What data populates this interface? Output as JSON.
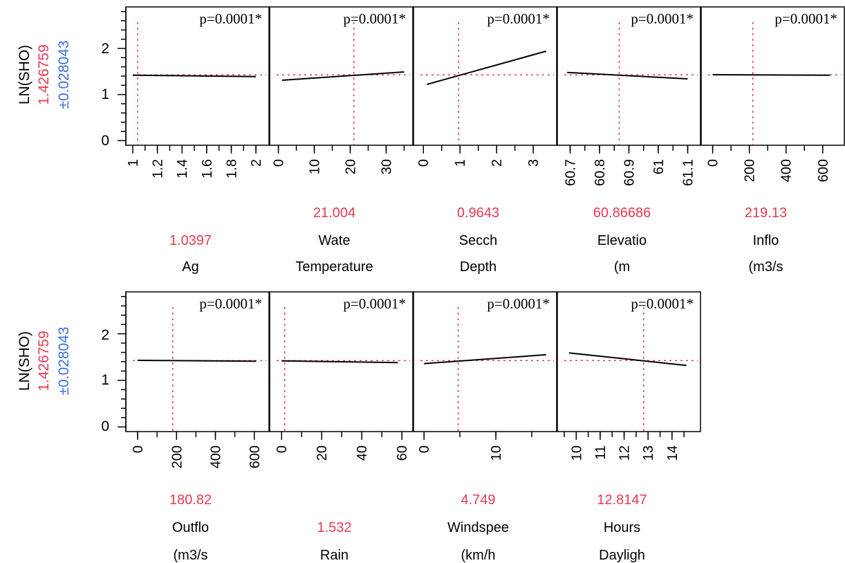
{
  "colors": {
    "current_value": "#e8384f",
    "ci": "#3d6fe0",
    "line": "#000000",
    "reference": "#e8384f"
  },
  "rows": [
    {
      "ylabel": "LN(SHO)",
      "y_current": "1.426759",
      "y_ci": "±0.028043",
      "y_ticks": [
        "0",
        "1",
        "2"
      ]
    },
    {
      "ylabel": "LN(SHO)",
      "y_current": "1.426759",
      "y_ci": "±0.028043",
      "y_ticks": [
        "0",
        "1",
        "2"
      ]
    }
  ],
  "chart_data": {
    "type": "line",
    "subtype": "prediction-profiler",
    "ylim": [
      -0.1,
      2.9
    ],
    "y_reference": 1.426759,
    "grid": false,
    "panels": [
      {
        "name": "Ag",
        "label_lines": [
          "1.0397",
          "Ag"
        ],
        "current_value": 1.0397,
        "xlim": [
          1.0,
          2.05
        ],
        "x_ticks": [
          "1",
          "1.2",
          "1.4",
          "1.6",
          "1.8",
          "2"
        ],
        "x": [
          1.0,
          2.0
        ],
        "y": [
          1.42,
          1.39
        ],
        "pvalue": "p=0.0001*"
      },
      {
        "name": "Water Temperature",
        "label_lines": [
          "21.004",
          "Wate",
          "Temperature"
        ],
        "current_value": 21.004,
        "xlim": [
          -0.5,
          35.5
        ],
        "x_ticks": [
          "0",
          "10",
          "20",
          "30"
        ],
        "x": [
          1.0,
          35.0
        ],
        "y": [
          1.31,
          1.49
        ],
        "pvalue": "p=0.0001*"
      },
      {
        "name": "Secchi Depth",
        "label_lines": [
          "0.9643",
          "Secch",
          "Depth"
        ],
        "current_value": 0.9643,
        "xlim": [
          -0.08,
          3.45
        ],
        "x_ticks": [
          "0",
          "1",
          "2",
          "3"
        ],
        "x": [
          0.1,
          3.35
        ],
        "y": [
          1.22,
          1.94
        ],
        "pvalue": "p=0.0001*"
      },
      {
        "name": "Elevation (m)",
        "label_lines": [
          "60.86686",
          "Elevatio",
          "(m"
        ],
        "current_value": 60.86686,
        "xlim": [
          60.68,
          61.12
        ],
        "x_ticks": [
          "60.7",
          "60.8",
          "60.9",
          "61",
          "61.1"
        ],
        "x": [
          60.69,
          61.1
        ],
        "y": [
          1.48,
          1.34
        ],
        "pvalue": "p=0.0001*"
      },
      {
        "name": "Inflow (m3/s)",
        "label_lines": [
          "219.13",
          "Inflo",
          "(m3/s"
        ],
        "current_value": 219.13,
        "xlim": [
          -25,
          680
        ],
        "x_ticks": [
          "0",
          "200",
          "400",
          "600"
        ],
        "x": [
          0,
          640
        ],
        "y": [
          1.43,
          1.42
        ],
        "pvalue": "p=0.0001*"
      },
      {
        "name": "Outflow (m3/s)",
        "label_lines": [
          "180.82",
          "Outflo",
          "(m3/s"
        ],
        "current_value": 180.82,
        "xlim": [
          -25,
          640
        ],
        "x_ticks": [
          "0",
          "200",
          "400",
          "600"
        ],
        "x": [
          0,
          610
        ],
        "y": [
          1.43,
          1.41
        ],
        "pvalue": "p=0.0001*"
      },
      {
        "name": "Rain",
        "label_lines": [
          "1.532",
          "Rain"
        ],
        "current_value": 1.532,
        "xlim": [
          -2.5,
          62
        ],
        "x_ticks": [
          "0",
          "20",
          "40",
          "60"
        ],
        "x": [
          0,
          58
        ],
        "y": [
          1.42,
          1.38
        ],
        "pvalue": "p=0.0001*"
      },
      {
        "name": "Windspeed (km/h)",
        "label_lines": [
          "4.749",
          "Windspee",
          "(km/h"
        ],
        "current_value": 4.749,
        "xlim": [
          -0.5,
          17.5
        ],
        "x_ticks": [
          "0",
          "10"
        ],
        "x": [
          0,
          17
        ],
        "y": [
          1.36,
          1.55
        ],
        "pvalue": "p=0.0001*"
      },
      {
        "name": "Hours of Daylight",
        "label_lines": [
          "12.8147",
          "Hours",
          "Dayligh"
        ],
        "current_value": 12.8147,
        "xlim": [
          9.5,
          14.9
        ],
        "x_ticks": [
          "10",
          "11",
          "12",
          "13",
          "14"
        ],
        "x": [
          9.7,
          14.6
        ],
        "y": [
          1.59,
          1.32
        ],
        "pvalue": "p=0.0001*"
      }
    ]
  }
}
